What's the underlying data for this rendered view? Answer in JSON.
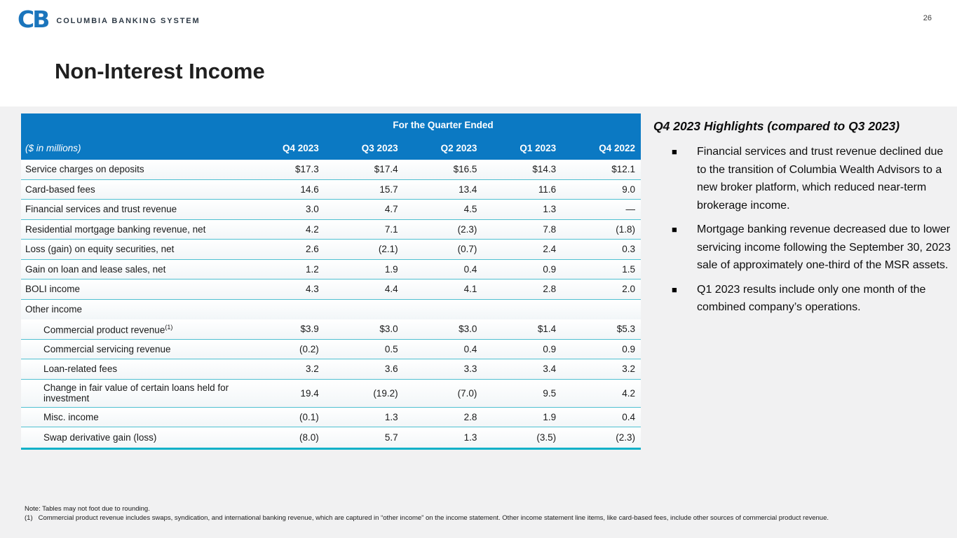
{
  "page": {
    "number": "26"
  },
  "brand": {
    "logo_text": "CB",
    "name": "COLUMBIA BANKING SYSTEM"
  },
  "title": "Non-Interest Income",
  "table": {
    "group_header": "For the Quarter Ended",
    "unit_label": "($ in millions)",
    "columns": [
      "Q4 2023",
      "Q3 2023",
      "Q2 2023",
      "Q1 2023",
      "Q4 2022"
    ],
    "rows": [
      {
        "label": "Service charges on deposits",
        "indent": false,
        "section": false,
        "values": [
          "$17.3",
          "$17.4",
          "$16.5",
          "$14.3",
          "$12.1"
        ]
      },
      {
        "label": "Card-based fees",
        "indent": false,
        "section": false,
        "values": [
          "14.6",
          "15.7",
          "13.4",
          "11.6",
          "9.0"
        ]
      },
      {
        "label": "Financial services and trust revenue",
        "indent": false,
        "section": false,
        "values": [
          "3.0",
          "4.7",
          "4.5",
          "1.3",
          "—"
        ]
      },
      {
        "label": "Residential mortgage banking revenue, net",
        "indent": false,
        "section": false,
        "values": [
          "4.2",
          "7.1",
          "(2.3)",
          "7.8",
          "(1.8)"
        ]
      },
      {
        "label": "Loss (gain) on equity securities, net",
        "indent": false,
        "section": false,
        "values": [
          "2.6",
          "(2.1)",
          "(0.7)",
          "2.4",
          "0.3"
        ]
      },
      {
        "label": "Gain on loan and lease sales, net",
        "indent": false,
        "section": false,
        "values": [
          "1.2",
          "1.9",
          "0.4",
          "0.9",
          "1.5"
        ]
      },
      {
        "label": "BOLI income",
        "indent": false,
        "section": false,
        "values": [
          "4.3",
          "4.4",
          "4.1",
          "2.8",
          "2.0"
        ]
      },
      {
        "label": "Other income",
        "indent": false,
        "section": true,
        "values": [
          "",
          "",
          "",
          "",
          ""
        ]
      },
      {
        "label": "Commercial product revenue",
        "sup": "(1)",
        "indent": true,
        "section": false,
        "values": [
          "$3.9",
          "$3.0",
          "$3.0",
          "$1.4",
          "$5.3"
        ]
      },
      {
        "label": "Commercial servicing revenue",
        "indent": true,
        "section": false,
        "values": [
          "(0.2)",
          "0.5",
          "0.4",
          "0.9",
          "0.9"
        ]
      },
      {
        "label": "Loan-related fees",
        "indent": true,
        "section": false,
        "values": [
          "3.2",
          "3.6",
          "3.3",
          "3.4",
          "3.2"
        ]
      },
      {
        "label": "Change in fair value of certain loans held for investment",
        "indent": true,
        "section": false,
        "values": [
          "19.4",
          "(19.2)",
          "(7.0)",
          "9.5",
          "4.2"
        ]
      },
      {
        "label": "Misc. income",
        "indent": true,
        "section": false,
        "values": [
          "(0.1)",
          "1.3",
          "2.8",
          "1.9",
          "0.4"
        ]
      },
      {
        "label": "Swap derivative gain (loss)",
        "indent": true,
        "section": false,
        "values": [
          "(8.0)",
          "5.7",
          "1.3",
          "(3.5)",
          "(2.3)"
        ]
      }
    ]
  },
  "highlights": {
    "title": "Q4 2023 Highlights (compared to Q3 2023)",
    "bullets": [
      "Financial services and trust revenue declined due to the transition of Columbia Wealth Advisors to a new broker platform, which reduced near-term brokerage income.",
      "Mortgage banking revenue decreased due to lower servicing income following the September 30, 2023 sale of approximately one-third of the MSR assets.",
      "Q1 2023 results include only one month of the combined company’s operations."
    ]
  },
  "footnotes": {
    "note": "Note: Tables may not foot due to rounding.",
    "items": [
      {
        "ref": "(1)",
        "text": "Commercial product revenue includes swaps, syndication, and international banking revenue, which are captured in “other income” on the income statement. Other income statement line items, like card-based fees, include other sources of commercial product revenue."
      }
    ]
  },
  "colors": {
    "header_blue": "#0b79c3",
    "divider_teal": "#4fc0d1",
    "bottom_border_teal": "#0db1c8",
    "logo_blue": "#1b75bc",
    "band_gray": "#f1f1f2"
  }
}
